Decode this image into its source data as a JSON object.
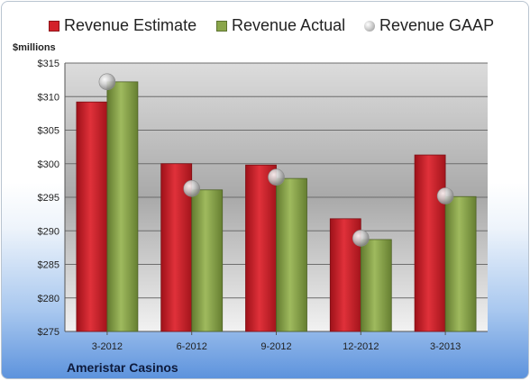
{
  "chart_data": {
    "type": "bar",
    "categories": [
      "3-2012",
      "6-2012",
      "9-2012",
      "12-2012",
      "3-2013"
    ],
    "series": [
      {
        "name": "Revenue Estimate",
        "kind": "bar",
        "color": "#d3222a",
        "values": [
          309.2,
          300.0,
          299.8,
          291.8,
          301.3
        ]
      },
      {
        "name": "Revenue Actual",
        "kind": "bar",
        "color": "#8aa64a",
        "values": [
          312.2,
          296.1,
          297.8,
          288.7,
          295.1
        ]
      },
      {
        "name": "Revenue GAAP",
        "kind": "marker",
        "color": "#c0c0c0",
        "values": [
          312.2,
          296.3,
          298.0,
          288.9,
          295.2
        ]
      }
    ],
    "ylabel": "$millions",
    "ylim": [
      275,
      315
    ],
    "yticks": [
      "$275",
      "$280",
      "$285",
      "$290",
      "$295",
      "$300",
      "$305",
      "$310",
      "$315"
    ],
    "grid": true,
    "legend": "top"
  },
  "footer": {
    "company": "Ameristar Casinos"
  }
}
